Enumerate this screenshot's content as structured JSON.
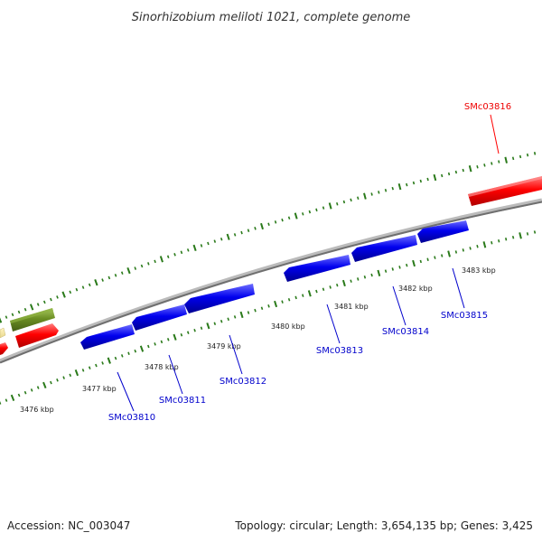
{
  "title": "Sinorhizobium meliloti 1021, complete genome",
  "accession": "Accession: NC_003047",
  "summary": "Topology: circular; Length: 3,654,135 bp; Genes: 3,425",
  "colors": {
    "forward_gene": "#ff0000",
    "reverse_gene": "#0000ee",
    "other_gene": "#6b8e23",
    "tick": "#2a7a1a",
    "backbone": "#888888"
  },
  "forward_genes": [
    {
      "name": "SMc03816",
      "labeled": true
    }
  ],
  "reverse_genes": [
    {
      "name": "SMc03810"
    },
    {
      "name": "SMc03811"
    },
    {
      "name": "SMc03812"
    },
    {
      "name": "SMc03813"
    },
    {
      "name": "SMc03814"
    },
    {
      "name": "SMc03815"
    }
  ],
  "kbp_labels": [
    "3476 kbp",
    "3477 kbp",
    "3478 kbp",
    "3479 kbp",
    "3480 kbp",
    "3481 kbp",
    "3482 kbp",
    "3483 kbp"
  ]
}
